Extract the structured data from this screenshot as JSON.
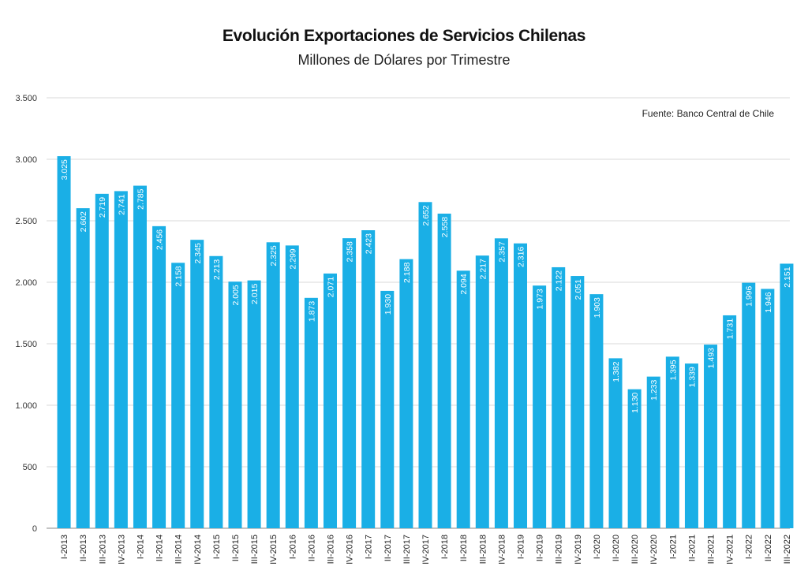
{
  "chart_data": {
    "type": "bar",
    "title": "Evolución Exportaciones de Servicios Chilenas",
    "subtitle": "Millones de Dólares por Trimestre",
    "source_note": "Fuente: Banco Central de Chile",
    "categories": [
      "I-2013",
      "II-2013",
      "III-2013",
      "IV-2013",
      "I-2014",
      "II-2014",
      "III-2014",
      "IV-2014",
      "I-2015",
      "II-2015",
      "III-2015",
      "IV-2015",
      "I-2016",
      "II-2016",
      "III-2016",
      "IV-2016",
      "I-2017",
      "II-2017",
      "III-2017",
      "IV-2017",
      "I-2018",
      "II-2018",
      "III-2018",
      "IV-2018",
      "I-2019",
      "II-2019",
      "III-2019",
      "IV-2019",
      "I-2020",
      "II-2020",
      "III-2020",
      "IV-2020",
      "I-2021",
      "II-2021",
      "III-2021",
      "IV-2021",
      "I-2022",
      "II-2022",
      "III-2022"
    ],
    "values": [
      3025,
      2602,
      2719,
      2741,
      2785,
      2456,
      2158,
      2345,
      2213,
      2005,
      2015,
      2325,
      2299,
      1873,
      2071,
      2358,
      2423,
      1930,
      2188,
      2652,
      2558,
      2094,
      2217,
      2357,
      2316,
      1973,
      2122,
      2051,
      1903,
      1382,
      1130,
      1233,
      1395,
      1339,
      1493,
      1731,
      1996,
      1946,
      2151
    ],
    "data_labels": [
      "3.025",
      "2.602",
      "2.719",
      "2.741",
      "2.785",
      "2.456",
      "2.158",
      "2.345",
      "2.213",
      "2.005",
      "2.015",
      "2.325",
      "2.299",
      "1.873",
      "2.071",
      "2.358",
      "2.423",
      "1.930",
      "2.188",
      "2.652",
      "2.558",
      "2.094",
      "2.217",
      "2.357",
      "2.316",
      "1.973",
      "2.122",
      "2.051",
      "1.903",
      "1.382",
      "1.130",
      "1.233",
      "1.395",
      "1.339",
      "1.493",
      "1.731",
      "1.996",
      "1.946",
      "2.151"
    ],
    "ylim": [
      0,
      3500
    ],
    "yticks": [
      0,
      500,
      1000,
      1500,
      2000,
      2500,
      3000,
      3500
    ],
    "ytick_labels": [
      "0",
      "500",
      "1.000",
      "1.500",
      "2.000",
      "2.500",
      "3.000",
      "3.500"
    ],
    "xlabel": "",
    "ylabel": "",
    "grid": true,
    "bar_color": "#1AAFE6",
    "grid_color": "#d9d9d9"
  }
}
